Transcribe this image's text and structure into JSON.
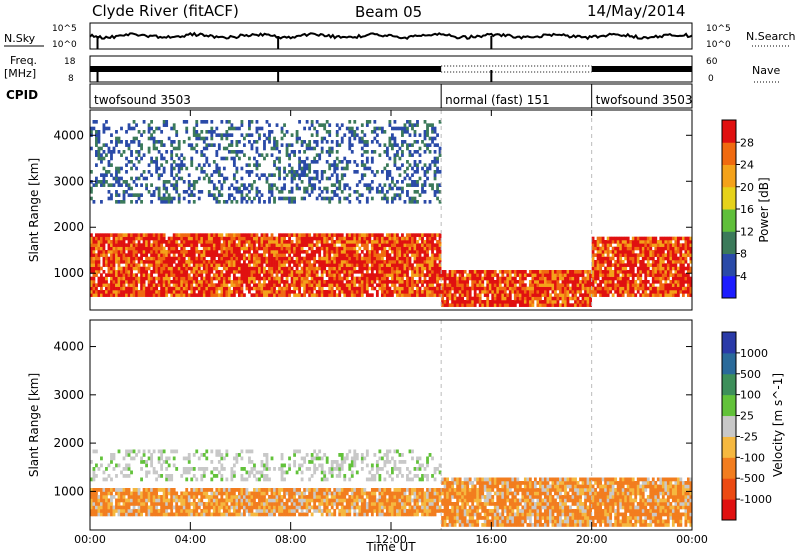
{
  "header": {
    "title": "Clyde River (fitACF)",
    "beam": "Beam 05",
    "date": "14/May/2014"
  },
  "strip_labels": {
    "nsky": "N.Sky",
    "nsearch": "N.Search",
    "freq": "Freq.",
    "freq_unit": "[MHz]",
    "nave": "Nave",
    "cpid": "CPID",
    "noise_left_ticks": [
      "10^5",
      "10^0"
    ],
    "noise_right_ticks": [
      "10^5",
      "10^0"
    ],
    "freq_left_ticks": [
      "18",
      "8"
    ],
    "freq_right_ticks": [
      "60",
      "0"
    ]
  },
  "cpid_segments": [
    {
      "label": "twofsound 3503",
      "start_h": 0,
      "end_h": 14
    },
    {
      "label": "normal (fast) 151",
      "start_h": 14,
      "end_h": 20
    },
    {
      "label": "twofsound 3503",
      "start_h": 20,
      "end_h": 24
    }
  ],
  "chart_data": [
    {
      "type": "heatmap",
      "name": "power",
      "xlabel": "",
      "ylabel": "Slant Range [km]",
      "xlim": [
        0,
        24
      ],
      "ylim": [
        200,
        4550
      ],
      "y_ticks": [
        1000,
        2000,
        3000,
        4000
      ],
      "colorbar_label": "Power [dB]",
      "colorbar_ticks": [
        "4",
        "8",
        "12",
        "16",
        "20",
        "24",
        "28"
      ],
      "colorbar_range": [
        0,
        32
      ],
      "colorbar_colors": [
        "#1c1cff",
        "#2a4aa8",
        "#3b7a5a",
        "#5fbf3a",
        "#e6d21a",
        "#f4a21a",
        "#f06a10",
        "#e01010"
      ],
      "regions": [
        {
          "x0": 0,
          "x1": 14,
          "y0": 500,
          "y1": 1900,
          "level": 0.85,
          "label": "strong band"
        },
        {
          "x0": 14,
          "x1": 20,
          "y0": 300,
          "y1": 1100,
          "level": 0.9,
          "label": "near-range echoes"
        },
        {
          "x0": 20,
          "x1": 24,
          "y0": 500,
          "y1": 1800,
          "level": 0.8,
          "label": "strong band"
        },
        {
          "x0": 0,
          "x1": 14,
          "y0": 2500,
          "y1": 4300,
          "level": 0.2,
          "label": "weak far echoes"
        }
      ]
    },
    {
      "type": "heatmap",
      "name": "velocity",
      "xlabel": "Time UT",
      "ylabel": "Slant Range [km]",
      "xlim": [
        0,
        24
      ],
      "ylim": [
        200,
        4550
      ],
      "y_ticks": [
        1000,
        2000,
        3000,
        4000
      ],
      "x_ticks": [
        "00:00",
        "04:00",
        "08:00",
        "12:00",
        "16:00",
        "20:00",
        "00:00"
      ],
      "colorbar_label": "Velocity [m s^-1]",
      "colorbar_ticks": [
        "1000",
        "500",
        "100",
        "25",
        "-25",
        "-100",
        "-500",
        "-1000"
      ],
      "colorbar_colors": [
        "#2a3aa8",
        "#2a6a9a",
        "#3d8f5a",
        "#62c23a",
        "#c8c8c8",
        "#f5b840",
        "#f27d1f",
        "#ec4a12",
        "#e01010"
      ],
      "regions": [
        {
          "x0": 0,
          "x1": 14,
          "y0": 1200,
          "y1": 1900,
          "level": 0.5,
          "label": "near-zero velocity (grey)"
        },
        {
          "x0": 0,
          "x1": 14,
          "y0": 500,
          "y1": 1100,
          "level": 0.65,
          "label": "negative velocity (orange)"
        },
        {
          "x0": 14,
          "x1": 24,
          "y0": 300,
          "y1": 1300,
          "level": 0.7,
          "label": "negative velocity (orange)"
        }
      ]
    }
  ]
}
